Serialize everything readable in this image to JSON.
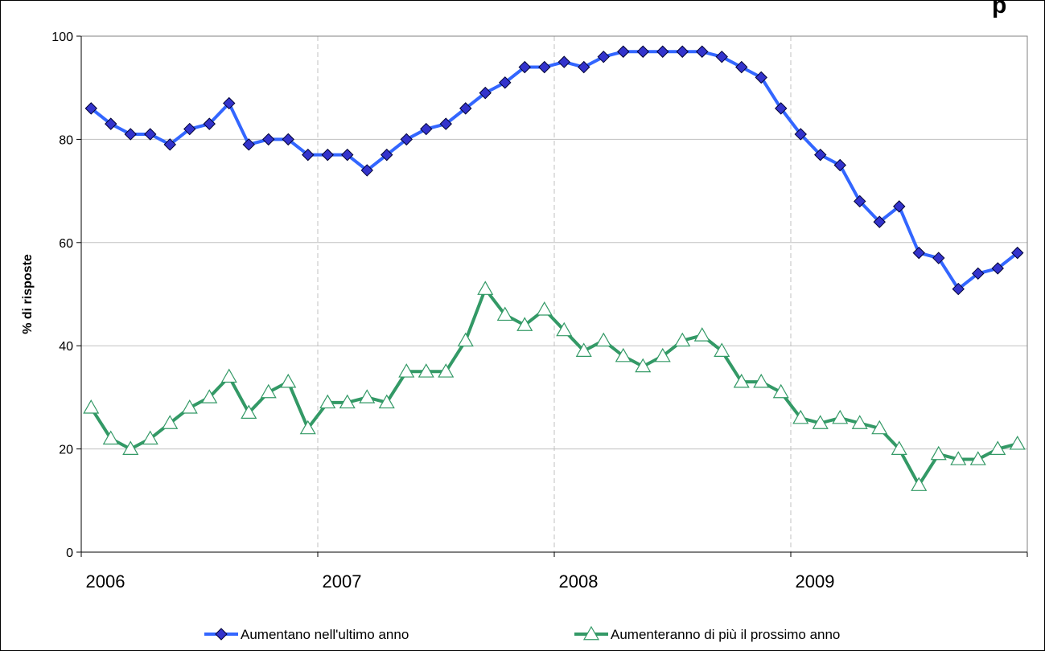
{
  "chart_data": {
    "type": "line",
    "title": "p",
    "ylabel": "% di risposte",
    "xlabel": "",
    "ylim": [
      0,
      100
    ],
    "yticks": [
      0,
      20,
      40,
      60,
      80,
      100
    ],
    "xticks": [
      "2006",
      "2007",
      "2008",
      "2009"
    ],
    "grid": {
      "horizontal": true,
      "vertical_dashed": true
    },
    "legend": {
      "position": "bottom"
    },
    "series": [
      {
        "name": "Aumentano nell'ultimo anno",
        "color": "#3366ff",
        "marker": "diamond",
        "marker_fill": "#3333cc",
        "values": [
          86,
          83,
          81,
          81,
          79,
          82,
          83,
          87,
          79,
          80,
          80,
          77,
          77,
          77,
          74,
          77,
          80,
          82,
          83,
          86,
          89,
          91,
          94,
          94,
          95,
          94,
          96,
          97,
          97,
          97,
          97,
          97,
          96,
          94,
          92,
          86,
          81,
          77,
          75,
          68,
          64,
          67,
          58,
          57,
          51,
          54,
          55,
          58
        ]
      },
      {
        "name": "Aumenteranno di più il prossimo anno",
        "color": "#339966",
        "marker": "triangle",
        "marker_fill": "#ffffff",
        "values": [
          28,
          22,
          20,
          22,
          25,
          28,
          30,
          34,
          27,
          31,
          33,
          24,
          29,
          29,
          30,
          29,
          35,
          35,
          35,
          41,
          51,
          46,
          44,
          47,
          43,
          39,
          41,
          38,
          36,
          38,
          41,
          42,
          39,
          33,
          33,
          31,
          26,
          25,
          26,
          25,
          24,
          20,
          13,
          19,
          18,
          18,
          20,
          21
        ]
      }
    ]
  }
}
